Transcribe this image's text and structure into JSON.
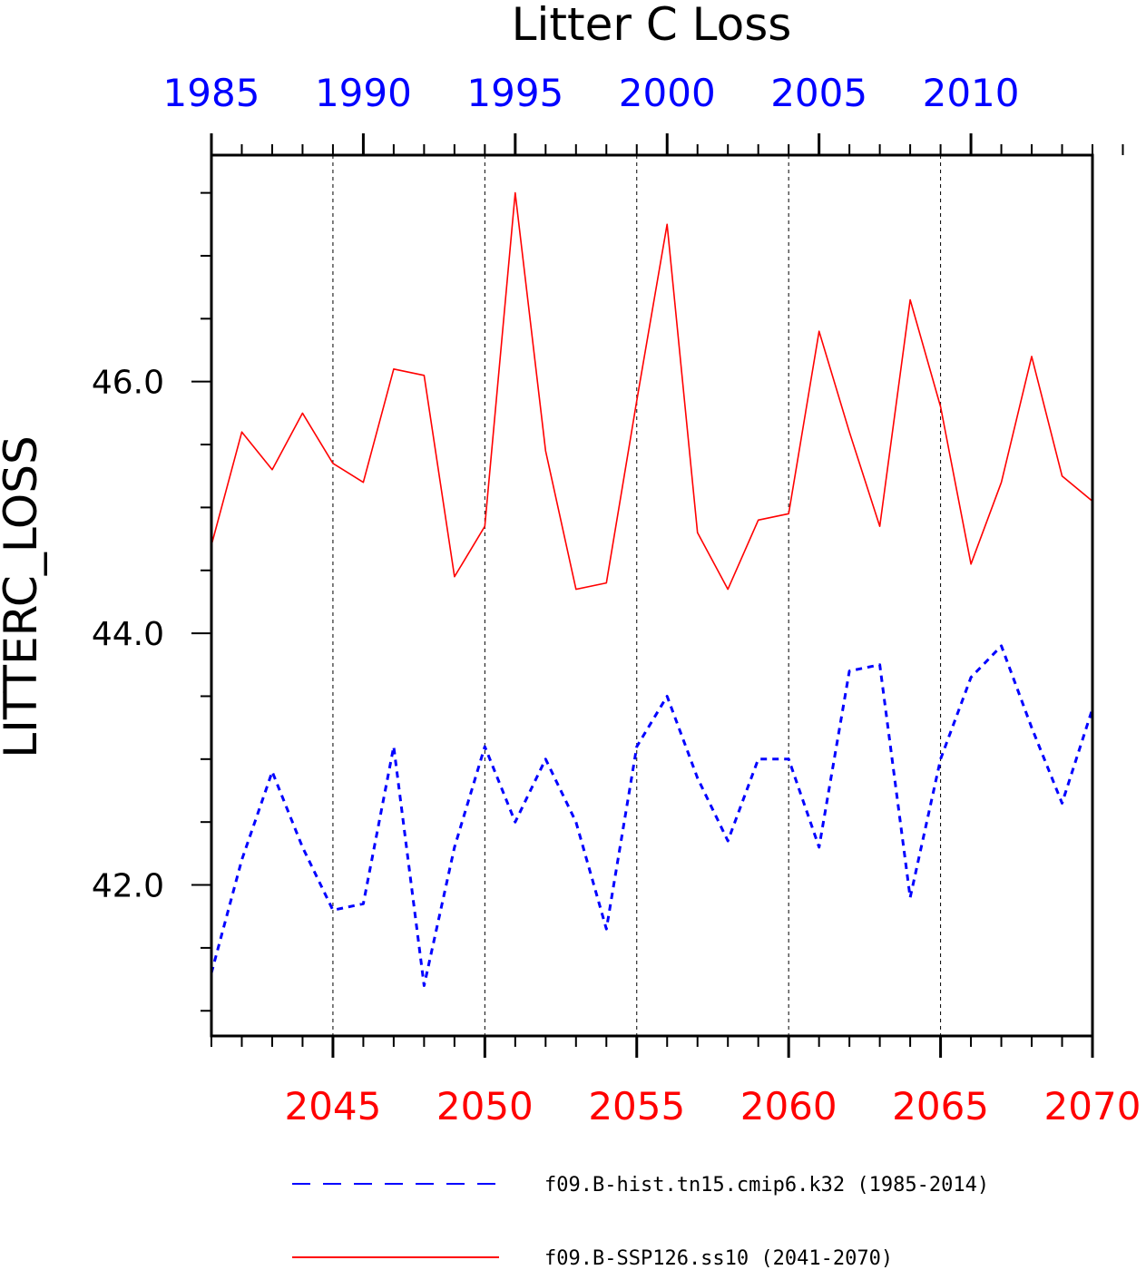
{
  "chart_data": {
    "type": "line",
    "title": "Litter C Loss",
    "ylabel": "LITTERC_LOSS",
    "ylim": [
      40.8,
      47.8
    ],
    "y_ticks": [
      42.0,
      44.0,
      46.0
    ],
    "y_tick_labels": [
      "42.0",
      "44.0",
      "46.0"
    ],
    "y_minor_step": 0.5,
    "grid": "vertical dashed lines at major ticks",
    "top_axis": {
      "range": [
        1985,
        2014
      ],
      "ticks": [
        1985,
        1990,
        1995,
        2000,
        2005,
        2010
      ],
      "tick_labels": [
        "1985",
        "1990",
        "1995",
        "2000",
        "2005",
        "2010"
      ],
      "color": "#0000ff"
    },
    "bottom_axis": {
      "range": [
        2041,
        2070
      ],
      "ticks": [
        2045,
        2050,
        2055,
        2060,
        2065,
        2070
      ],
      "tick_labels": [
        "2045",
        "2050",
        "2055",
        "2060",
        "2065",
        "2070"
      ],
      "color": "#ff0000"
    },
    "series": [
      {
        "name": "f09.B-hist.tn15.cmip6.k32 (1985-2014)",
        "axis": "top",
        "color": "#0000ff",
        "style": "dashed",
        "x": [
          1985,
          1986,
          1987,
          1988,
          1989,
          1990,
          1991,
          1992,
          1993,
          1994,
          1995,
          1996,
          1997,
          1998,
          1999,
          2000,
          2001,
          2002,
          2003,
          2004,
          2005,
          2006,
          2007,
          2008,
          2009,
          2010,
          2011,
          2012,
          2013,
          2014
        ],
        "values": [
          41.3,
          42.2,
          42.9,
          42.3,
          41.8,
          41.85,
          43.1,
          41.2,
          42.3,
          43.1,
          42.5,
          43.0,
          42.5,
          41.65,
          43.1,
          43.5,
          42.85,
          42.35,
          43.0,
          43.0,
          42.3,
          43.7,
          43.75,
          41.9,
          43.0,
          43.65,
          43.9,
          43.25,
          42.65,
          43.4
        ]
      },
      {
        "name": "f09.B-SSP126.ss10 (2041-2070)",
        "axis": "bottom",
        "color": "#ff0000",
        "style": "solid",
        "x": [
          2041,
          2042,
          2043,
          2044,
          2045,
          2046,
          2047,
          2048,
          2049,
          2050,
          2051,
          2052,
          2053,
          2054,
          2055,
          2056,
          2057,
          2058,
          2059,
          2060,
          2061,
          2062,
          2063,
          2064,
          2065,
          2066,
          2067,
          2068,
          2069,
          2070
        ],
        "values": [
          44.7,
          45.6,
          45.3,
          45.75,
          45.35,
          45.2,
          46.1,
          46.05,
          44.45,
          44.85,
          47.5,
          45.45,
          44.35,
          44.4,
          45.85,
          47.25,
          44.8,
          44.35,
          44.9,
          44.95,
          46.4,
          45.6,
          44.85,
          46.65,
          45.8,
          44.55,
          45.2,
          46.2,
          45.25,
          45.05
        ]
      }
    ],
    "legend": {
      "placement": "bottom",
      "entries": [
        "f09.B-hist.tn15.cmip6.k32 (1985-2014)",
        "f09.B-SSP126.ss10 (2041-2070)"
      ]
    }
  }
}
